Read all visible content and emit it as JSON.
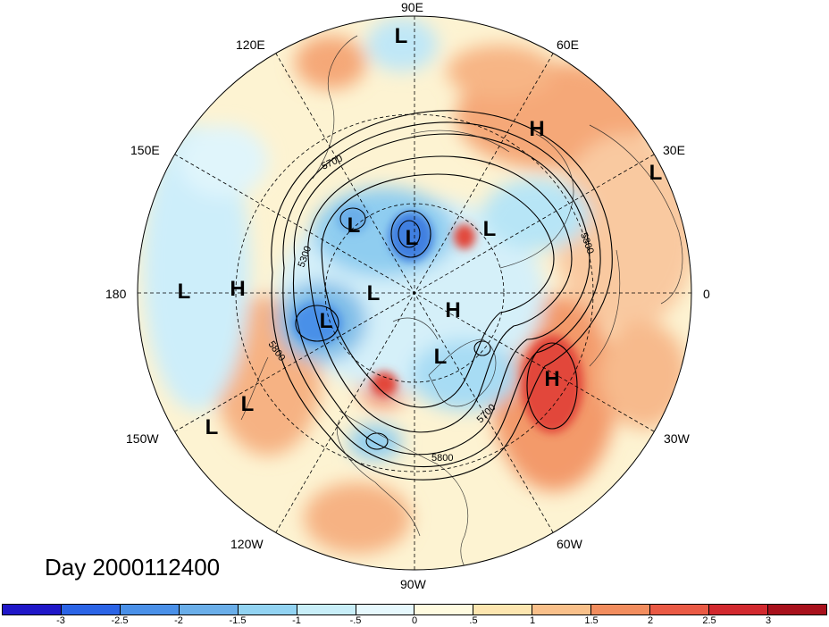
{
  "map": {
    "title": "Day 2000112400",
    "longitude_labels": [
      {
        "text": "90E"
      },
      {
        "text": "60E"
      },
      {
        "text": "30E"
      },
      {
        "text": "0"
      },
      {
        "text": "30W"
      },
      {
        "text": "60W"
      },
      {
        "text": "90W"
      },
      {
        "text": "120W"
      },
      {
        "text": "150W"
      },
      {
        "text": "180"
      },
      {
        "text": "150E"
      },
      {
        "text": "120E"
      }
    ],
    "contour_labels": [
      "5300",
      "5700",
      "5800",
      "5800",
      "5700",
      "5800"
    ],
    "pressure_centers": [
      "L",
      "H",
      "L",
      "L",
      "L",
      "L",
      "L",
      "H",
      "L",
      "H",
      "L",
      "H",
      "L",
      "L",
      "L"
    ],
    "colorbar": {
      "ticks": [
        "-3",
        "-2.5",
        "-2",
        "-1.5",
        "-1",
        "-.5",
        "0",
        ".5",
        "1",
        "1.5",
        "2",
        "2.5",
        "3"
      ],
      "colors": [
        "#2017c8",
        "#2b64e6",
        "#4a90e8",
        "#6aaee9",
        "#92d3f2",
        "#c8eef8",
        "#e6f8fd",
        "#fffbe0",
        "#fde6b0",
        "#f9c08a",
        "#f28d5e",
        "#ea5a45",
        "#d2292f",
        "#a8111c"
      ]
    }
  }
}
